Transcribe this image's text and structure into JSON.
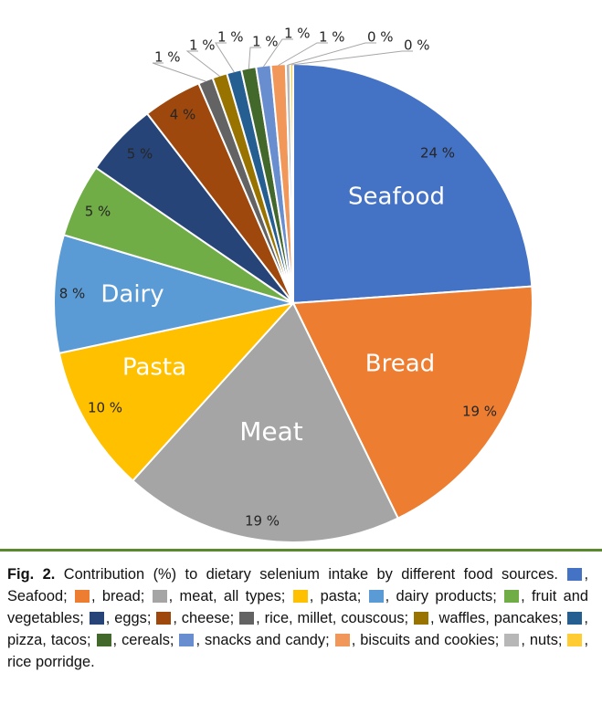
{
  "chart_data": {
    "type": "pie",
    "slices": [
      {
        "name": "Seafood",
        "value": 24,
        "pct_label": "24 %",
        "inner_label": "Seafood",
        "color": "#4472C4"
      },
      {
        "name": "bread",
        "value": 19,
        "pct_label": "19 %",
        "inner_label": "Bread",
        "color": "#ED7D31"
      },
      {
        "name": "meat, all types",
        "value": 19,
        "pct_label": "19 %",
        "inner_label": "Meat",
        "color": "#A5A5A5"
      },
      {
        "name": "pasta",
        "value": 10,
        "pct_label": "10 %",
        "inner_label": "Pasta",
        "color": "#FFC000"
      },
      {
        "name": "dairy products",
        "value": 8,
        "pct_label": "8 %",
        "inner_label": "Dairy",
        "color": "#5B9BD5"
      },
      {
        "name": "fruit and vegetables",
        "value": 5,
        "pct_label": "5 %",
        "inner_label": "",
        "color": "#70AD47"
      },
      {
        "name": "eggs",
        "value": 5,
        "pct_label": "5 %",
        "inner_label": "",
        "color": "#264478"
      },
      {
        "name": "cheese",
        "value": 4,
        "pct_label": "4 %",
        "inner_label": "",
        "color": "#9E480E"
      },
      {
        "name": "rice, millet, couscous",
        "value": 1,
        "pct_label": "1 %",
        "inner_label": "",
        "color": "#636363"
      },
      {
        "name": "waffles, pancakes",
        "value": 1,
        "pct_label": "1 %",
        "inner_label": "",
        "color": "#997300"
      },
      {
        "name": "pizza, tacos",
        "value": 1,
        "pct_label": "1 %",
        "inner_label": "",
        "color": "#255E91"
      },
      {
        "name": "cereals",
        "value": 1,
        "pct_label": "1 %",
        "inner_label": "",
        "color": "#43682B"
      },
      {
        "name": "snacks and candy",
        "value": 1,
        "pct_label": "1 %",
        "inner_label": "",
        "color": "#698ED0"
      },
      {
        "name": "biscuits and cookies",
        "value": 1,
        "pct_label": "1 %",
        "inner_label": "",
        "color": "#F1975A"
      },
      {
        "name": "nuts",
        "value": 0.3,
        "pct_label": "0 %",
        "inner_label": "",
        "color": "#B7B7B7"
      },
      {
        "name": "rice porridge",
        "value": 0.2,
        "pct_label": "0 %",
        "inner_label": "",
        "color": "#FFCD33"
      }
    ],
    "title": "",
    "legend": "caption-bottom"
  },
  "caption": {
    "label": "Fig. 2.",
    "text": "Contribution (%) to dietary selenium intake by different food sources.",
    "items": [
      {
        "name": "Seafood",
        "color": "#4472C4",
        "sep": ";"
      },
      {
        "name": "bread",
        "color": "#ED7D31",
        "sep": ";"
      },
      {
        "name": "meat, all types",
        "color": "#A5A5A5",
        "sep": ";"
      },
      {
        "name": "pasta",
        "color": "#FFC000",
        "sep": ";"
      },
      {
        "name": "dairy products",
        "color": "#5B9BD5",
        "sep": ";"
      },
      {
        "name": "fruit and vegetables",
        "color": "#70AD47",
        "sep": ";"
      },
      {
        "name": "eggs",
        "color": "#264478",
        "sep": ";"
      },
      {
        "name": "cheese",
        "color": "#9E480E",
        "sep": ";"
      },
      {
        "name": "rice, millet, couscous",
        "color": "#636363",
        "sep": ";"
      },
      {
        "name": "waffles, pancakes",
        "color": "#997300",
        "sep": ";"
      },
      {
        "name": "pizza, tacos",
        "color": "#255E91",
        "sep": ";"
      },
      {
        "name": "cereals",
        "color": "#43682B",
        "sep": ";"
      },
      {
        "name": "snacks and candy",
        "color": "#698ED0",
        "sep": ";"
      },
      {
        "name": "biscuits and cookies",
        "color": "#F1975A",
        "sep": ";"
      },
      {
        "name": "nuts",
        "color": "#B7B7B7",
        "sep": ";"
      },
      {
        "name": "rice porridge",
        "color": "#FFCD33",
        "sep": "."
      }
    ]
  }
}
